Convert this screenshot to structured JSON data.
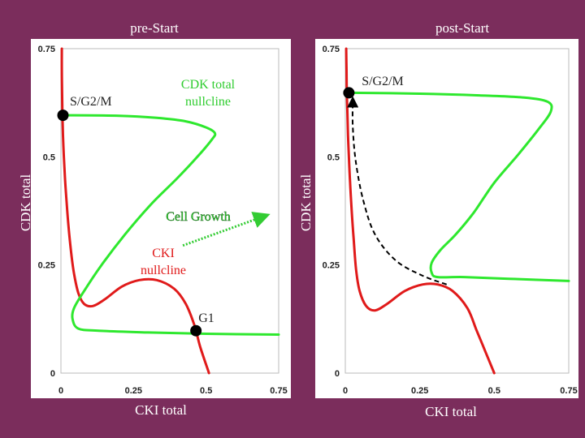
{
  "colors": {
    "background": "#7b2d5c",
    "panel": "#ffffff",
    "red_curve": "#e01a1a",
    "green_curve": "#2ee82e",
    "dot": "#000000",
    "arrow_green": "#33cc33",
    "annot_green": "#2ecc2e",
    "text_white": "#ffffff",
    "text_dark": "#222222"
  },
  "chart_data": [
    {
      "type": "line",
      "title": "pre-Start",
      "xlabel": "CKI total",
      "ylabel": "CDK total",
      "xlim": [
        0,
        0.75
      ],
      "ylim": [
        0,
        0.75
      ],
      "xticks": [
        "0",
        "0.25",
        "0.5",
        "0.75"
      ],
      "yticks": [
        "0",
        "0.25",
        "0.5",
        "0.75"
      ],
      "series": [
        {
          "name": "CKI nullcline",
          "color": "red",
          "points": [
            [
              0.003,
              0.75
            ],
            [
              0.003,
              0.7
            ],
            [
              0.004,
              0.65
            ],
            [
              0.005,
              0.6
            ],
            [
              0.007,
              0.55
            ],
            [
              0.01,
              0.5
            ],
            [
              0.014,
              0.45
            ],
            [
              0.019,
              0.4
            ],
            [
              0.026,
              0.34
            ],
            [
              0.035,
              0.28
            ],
            [
              0.045,
              0.23
            ],
            [
              0.06,
              0.185
            ],
            [
              0.08,
              0.16
            ],
            [
              0.11,
              0.155
            ],
            [
              0.15,
              0.17
            ],
            [
              0.21,
              0.2
            ],
            [
              0.27,
              0.215
            ],
            [
              0.33,
              0.215
            ],
            [
              0.39,
              0.195
            ],
            [
              0.43,
              0.16
            ],
            [
              0.46,
              0.11
            ],
            [
              0.48,
              0.06
            ],
            [
              0.51,
              0.0
            ]
          ]
        },
        {
          "name": "CDK total nullcline",
          "color": "green",
          "points": [
            [
              0.005,
              0.596
            ],
            [
              0.2,
              0.595
            ],
            [
              0.33,
              0.59
            ],
            [
              0.43,
              0.582
            ],
            [
              0.5,
              0.568
            ],
            [
              0.53,
              0.555
            ],
            [
              0.52,
              0.54
            ],
            [
              0.47,
              0.5
            ],
            [
              0.4,
              0.45
            ],
            [
              0.31,
              0.39
            ],
            [
              0.22,
              0.32
            ],
            [
              0.14,
              0.25
            ],
            [
              0.08,
              0.19
            ],
            [
              0.045,
              0.15
            ],
            [
              0.04,
              0.125
            ],
            [
              0.06,
              0.103
            ],
            [
              0.13,
              0.098
            ],
            [
              0.3,
              0.094
            ],
            [
              0.5,
              0.091
            ],
            [
              0.75,
              0.089
            ]
          ]
        },
        {
          "name": "Cell Growth arrow",
          "color": "green-dotted",
          "points": [
            [
              0.42,
              0.295
            ],
            [
              0.71,
              0.365
            ]
          ]
        }
      ],
      "markers": [
        {
          "name": "S/G2/M",
          "x": 0.007,
          "y": 0.596
        },
        {
          "name": "G1",
          "x": 0.465,
          "y": 0.098
        }
      ],
      "annotations": [
        "S/G2/M",
        "CDK total",
        "nullcline",
        "Cell Growth",
        "CKI",
        "nullcline",
        "G1"
      ]
    },
    {
      "type": "line",
      "title": "post-Start",
      "xlabel": "CKI total",
      "ylabel": "CDK total",
      "xlim": [
        0,
        0.75
      ],
      "ylim": [
        0,
        0.75
      ],
      "xticks": [
        "0",
        "0.25",
        "0.5",
        "0.75"
      ],
      "yticks": [
        "0",
        "0.25",
        "0.5",
        "0.75"
      ],
      "series": [
        {
          "name": "CKI nullcline",
          "color": "red",
          "points": [
            [
              0.003,
              0.75
            ],
            [
              0.004,
              0.7
            ],
            [
              0.005,
              0.65
            ],
            [
              0.007,
              0.6
            ],
            [
              0.009,
              0.55
            ],
            [
              0.012,
              0.5
            ],
            [
              0.016,
              0.44
            ],
            [
              0.021,
              0.38
            ],
            [
              0.028,
              0.31
            ],
            [
              0.036,
              0.24
            ],
            [
              0.048,
              0.19
            ],
            [
              0.07,
              0.155
            ],
            [
              0.1,
              0.145
            ],
            [
              0.14,
              0.16
            ],
            [
              0.2,
              0.19
            ],
            [
              0.26,
              0.205
            ],
            [
              0.31,
              0.205
            ],
            [
              0.36,
              0.19
            ],
            [
              0.41,
              0.15
            ],
            [
              0.44,
              0.1
            ],
            [
              0.47,
              0.05
            ],
            [
              0.5,
              0.0
            ]
          ]
        },
        {
          "name": "CDK total nullcline",
          "color": "green",
          "points": [
            [
              0.012,
              0.648
            ],
            [
              0.25,
              0.646
            ],
            [
              0.45,
              0.642
            ],
            [
              0.6,
              0.637
            ],
            [
              0.68,
              0.627
            ],
            [
              0.69,
              0.605
            ],
            [
              0.65,
              0.565
            ],
            [
              0.58,
              0.505
            ],
            [
              0.5,
              0.44
            ],
            [
              0.43,
              0.37
            ],
            [
              0.37,
              0.32
            ],
            [
              0.32,
              0.285
            ],
            [
              0.29,
              0.255
            ],
            [
              0.29,
              0.232
            ],
            [
              0.31,
              0.222
            ],
            [
              0.4,
              0.222
            ],
            [
              0.55,
              0.218
            ],
            [
              0.75,
              0.213
            ]
          ]
        },
        {
          "name": "trajectory",
          "color": "black-dashed",
          "points": [
            [
              0.34,
              0.205
            ],
            [
              0.26,
              0.225
            ],
            [
              0.17,
              0.26
            ],
            [
              0.1,
              0.32
            ],
            [
              0.06,
              0.4
            ],
            [
              0.035,
              0.49
            ],
            [
              0.025,
              0.57
            ],
            [
              0.025,
              0.635
            ]
          ]
        }
      ],
      "markers": [
        {
          "name": "S/G2/M",
          "x": 0.012,
          "y": 0.648
        }
      ],
      "annotations": [
        "S/G2/M"
      ]
    }
  ],
  "text": {
    "pre_title": "pre-Start",
    "post_title": "post-Start",
    "left_ylabel": "CDK total",
    "right_ylabel": "CDK total",
    "left_xlabel": "CKI total",
    "right_xlabel": "CKI total",
    "left_sg2m": "S/G2/M",
    "left_cdk_line1": "CDK total",
    "left_cdk_line2": "nullcline",
    "cell_growth": "Cell Growth",
    "cki_line1": "CKI",
    "cki_line2": "nullcline",
    "g1": "G1",
    "right_sg2m": "S/G2/M"
  }
}
